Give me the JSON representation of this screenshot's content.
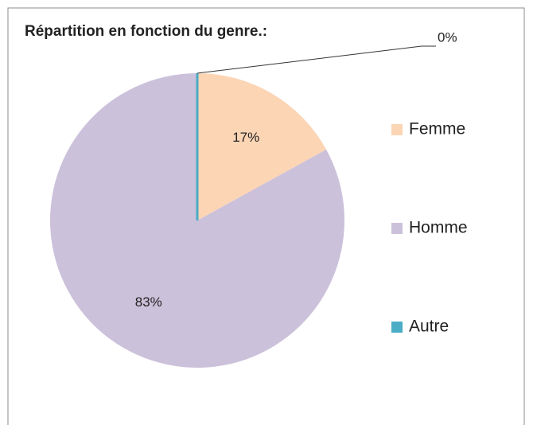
{
  "chart_data": {
    "type": "pie",
    "title": "Répartition  en fonction du genre.:",
    "categories": [
      "Femme",
      "Homme",
      "Autre"
    ],
    "values": [
      17,
      83,
      0
    ],
    "value_labels": [
      "17%",
      "83%",
      "0%"
    ],
    "colors": [
      "#fcd5b5",
      "#ccc1da",
      "#4bacc6"
    ],
    "legend": "right"
  }
}
